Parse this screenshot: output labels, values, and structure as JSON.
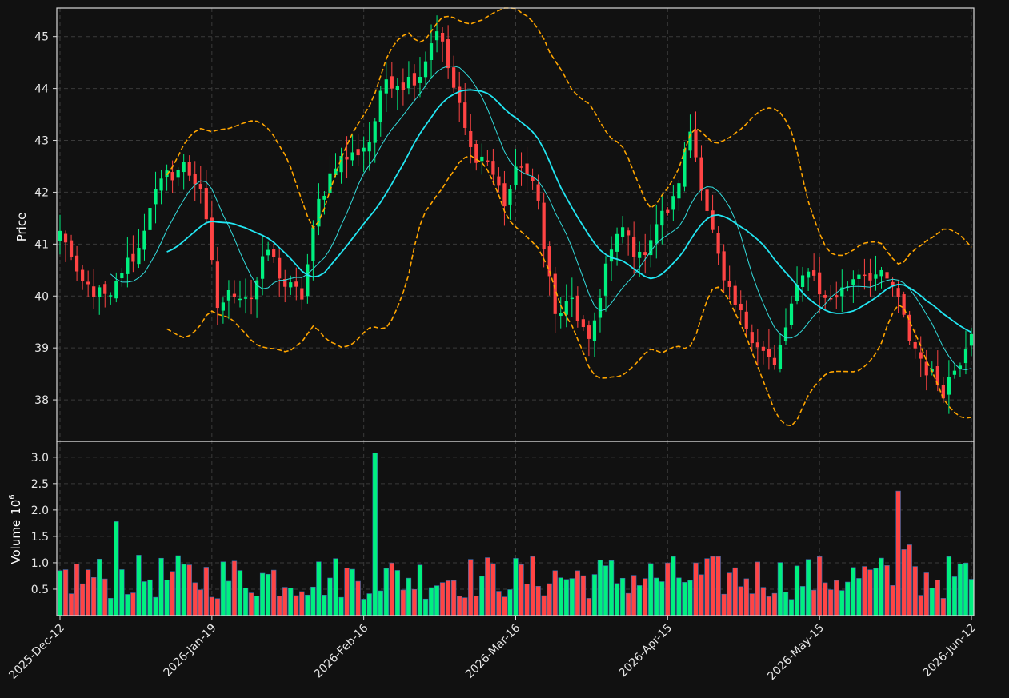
{
  "colors": {
    "background": "#111111",
    "up": "#00f07f",
    "down": "#ff4444",
    "sma_fast": "#33dcdc",
    "sma_slow": "#22e6f2",
    "bollinger": "#ffa500",
    "frame": "#d8d8d8",
    "grid": "#3a3a3a",
    "text": "#e6e6e6"
  },
  "chart_data": {
    "type": "candlestick",
    "ylabel_price": "Price",
    "ylabel_volume": "Volume",
    "volume_exponent_label": "10",
    "volume_exponent_sup": "6",
    "grid": true,
    "price_ylim": [
      37.2,
      45.55
    ],
    "volume_ylim": [
      0,
      3.3
    ],
    "price_ticks": [
      "38",
      "39",
      "40",
      "41",
      "42",
      "43",
      "44",
      "45"
    ],
    "volume_ticks": [
      "0.5",
      "1.0",
      "1.5",
      "2.0",
      "2.5",
      "3.0"
    ],
    "x_tick_indices": [
      0,
      27,
      54,
      81,
      108,
      135,
      162
    ],
    "x_ticks": [
      "2025-Dec-12",
      "2026-Jan-19",
      "2026-Feb-16",
      "2026-Mar-16",
      "2026-Apr-15",
      "2026-May-15",
      "2026-Jun-12"
    ],
    "n_bars": 163,
    "price_path": [
      [
        0,
        41.2
      ],
      [
        1,
        41.1
      ],
      [
        3,
        40.3
      ],
      [
        6,
        40.1
      ],
      [
        9,
        39.9
      ],
      [
        11,
        40.5
      ],
      [
        14,
        40.9
      ],
      [
        16,
        41.8
      ],
      [
        19,
        42.3
      ],
      [
        22,
        42.5
      ],
      [
        25,
        42.1
      ],
      [
        28,
        39.8
      ],
      [
        31,
        40.1
      ],
      [
        34,
        40.0
      ],
      [
        37,
        40.9
      ],
      [
        40,
        40.2
      ],
      [
        43,
        40.0
      ],
      [
        46,
        41.8
      ],
      [
        49,
        42.6
      ],
      [
        52,
        42.7
      ],
      [
        55,
        43.0
      ],
      [
        58,
        44.2
      ],
      [
        61,
        44.1
      ],
      [
        64,
        44.3
      ],
      [
        67,
        45.2
      ],
      [
        70,
        44.0
      ],
      [
        73,
        42.8
      ],
      [
        76,
        42.6
      ],
      [
        79,
        41.8
      ],
      [
        82,
        42.6
      ],
      [
        85,
        41.8
      ],
      [
        88,
        39.6
      ],
      [
        91,
        39.9
      ],
      [
        94,
        39.0
      ],
      [
        97,
        40.6
      ],
      [
        100,
        41.3
      ],
      [
        103,
        40.7
      ],
      [
        106,
        41.4
      ],
      [
        109,
        41.8
      ],
      [
        112,
        43.2
      ],
      [
        115,
        41.7
      ],
      [
        118,
        40.2
      ],
      [
        121,
        39.6
      ],
      [
        124,
        39.1
      ],
      [
        127,
        38.6
      ],
      [
        130,
        39.8
      ],
      [
        133,
        40.6
      ],
      [
        136,
        39.9
      ],
      [
        139,
        40.1
      ],
      [
        142,
        40.5
      ],
      [
        145,
        40.4
      ],
      [
        148,
        40.2
      ],
      [
        151,
        39.2
      ],
      [
        154,
        38.6
      ],
      [
        157,
        38.2
      ],
      [
        160,
        38.8
      ],
      [
        162,
        39.4
      ]
    ],
    "volume_spikes": [
      [
        10,
        1.78
      ],
      [
        56,
        3.08
      ],
      [
        149,
        2.36
      ],
      [
        150,
        1.25
      ],
      [
        151,
        1.34
      ]
    ]
  }
}
